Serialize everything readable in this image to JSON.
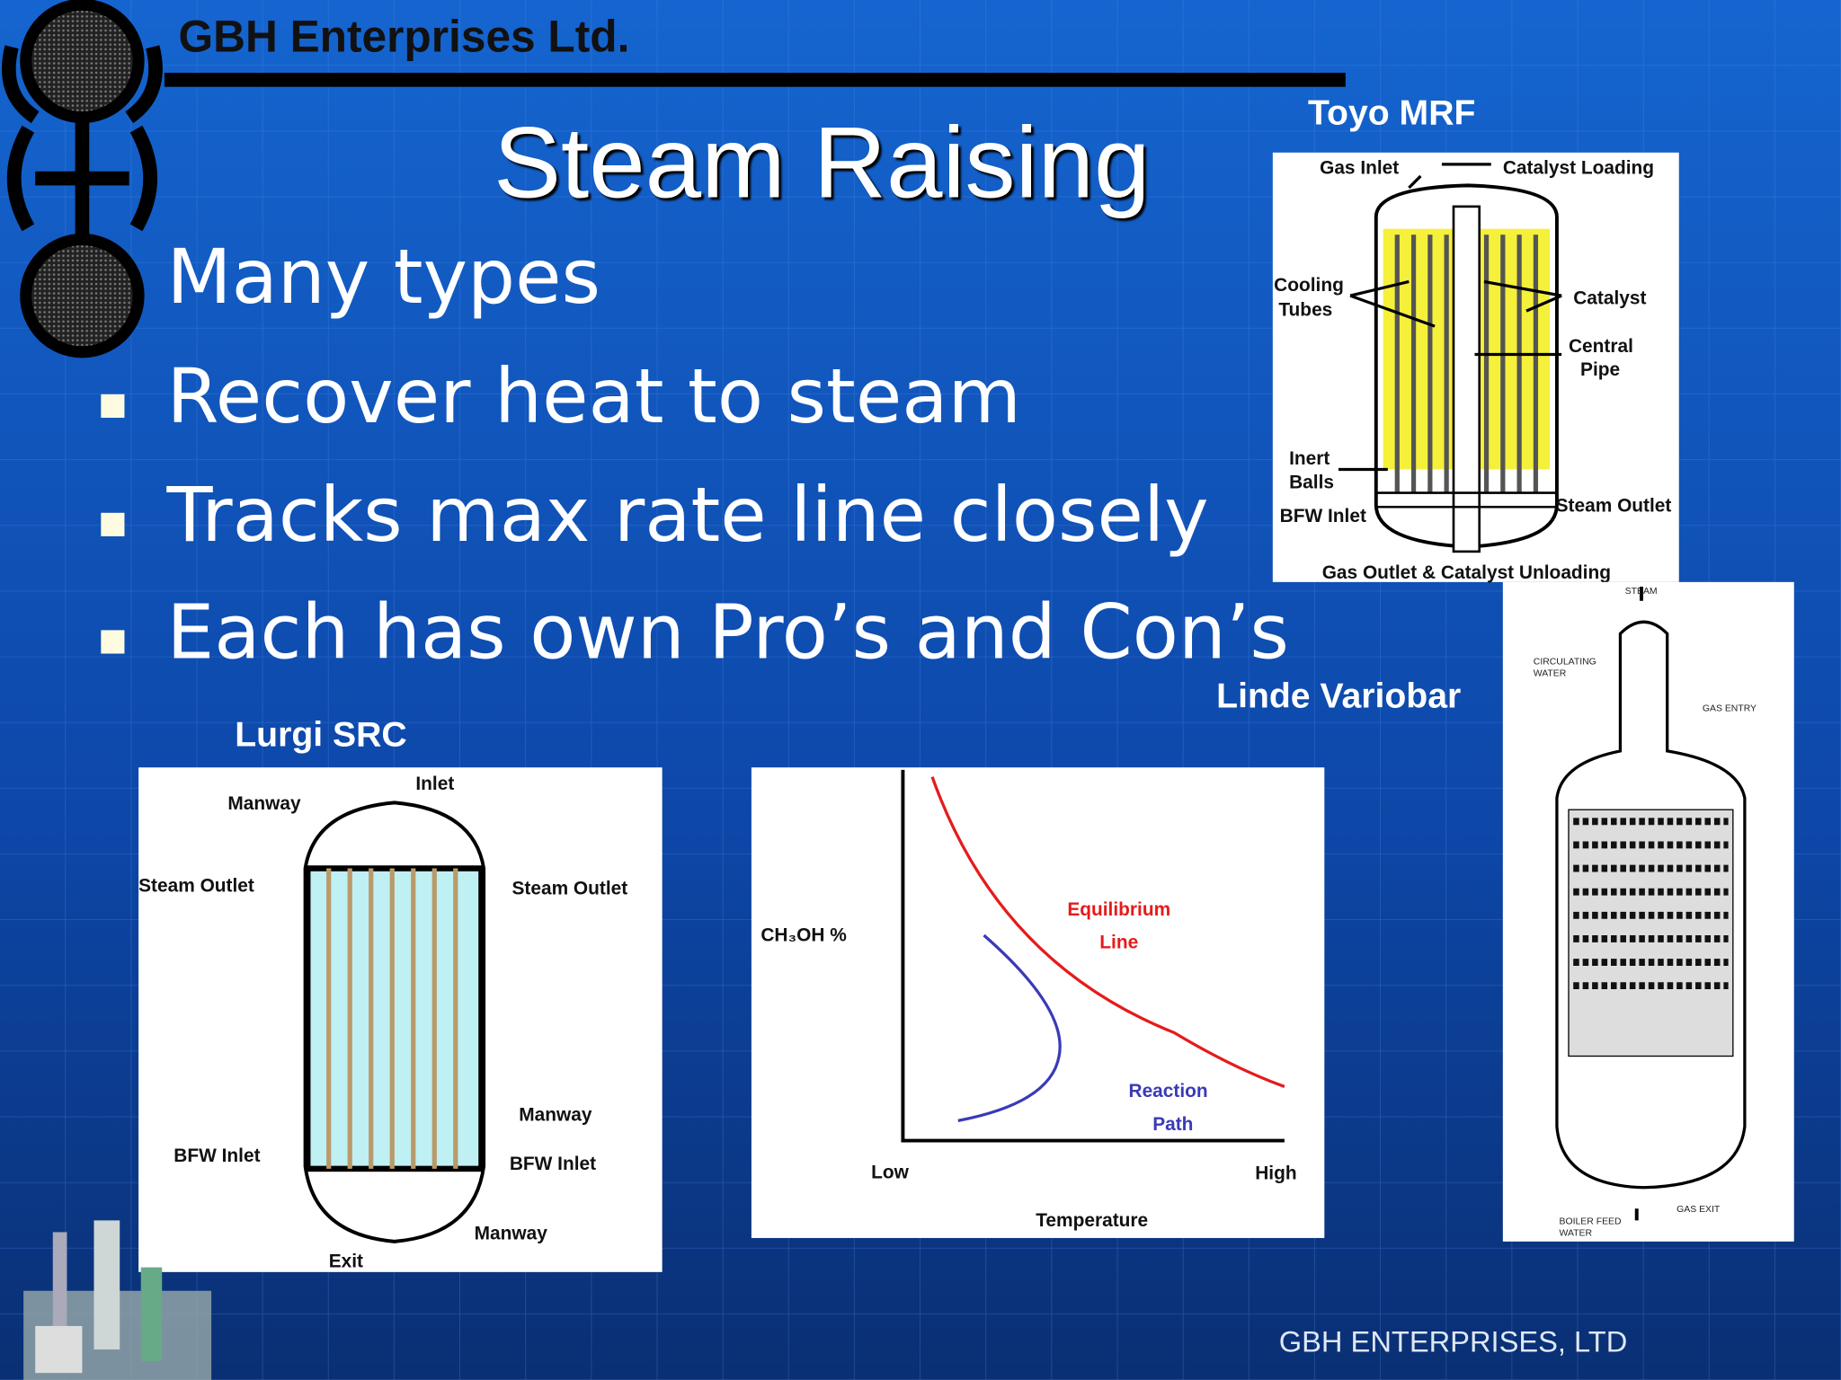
{
  "header": {
    "company": "GBH Enterprises Ltd."
  },
  "title": "Steam Raising",
  "intro": "Many types",
  "bullets": [
    "Recover heat to steam",
    "Tracks max rate line closely",
    "Each has own Pro’s and Con’s"
  ],
  "toyo": {
    "caption": "Toyo MRF",
    "labels": {
      "gas_inlet": "Gas Inlet",
      "catalyst_loading": "Catalyst Loading",
      "cooling_tubes": [
        "Cooling",
        "Tubes"
      ],
      "catalyst": "Catalyst",
      "central_pipe": [
        "Central",
        "Pipe"
      ],
      "inert_balls": [
        "Inert",
        "Balls"
      ],
      "bfw_inlet": "BFW Inlet",
      "steam_outlet": "Steam Outlet",
      "gas_outlet": "Gas Outlet & Catalyst Unloading"
    }
  },
  "linde": {
    "caption": "Linde Variobar",
    "labels": {
      "steam": "STEAM",
      "circulating_water": [
        "CIRCULATING",
        "WATER"
      ],
      "gas_entry": "GAS ENTRY",
      "gas_exit": "GAS EXIT",
      "boiler_feed_water": [
        "BOILER FEED",
        "WATER"
      ]
    }
  },
  "lurgi": {
    "caption": "Lurgi SRC",
    "labels": {
      "inlet": "Inlet",
      "manway_top": "Manway",
      "steam_outlet_left": "Steam Outlet",
      "steam_outlet_right": "Steam Outlet",
      "manway_right": "Manway",
      "bfw_inlet_left": "BFW Inlet",
      "bfw_inlet_right": "BFW Inlet",
      "manway_bottom": "Manway",
      "exit": "Exit"
    }
  },
  "graph": {
    "y_label": "CH₃OH %",
    "x_label": "Temperature",
    "x_low": "Low",
    "x_high": "High",
    "equilibrium": [
      "Equilibrium",
      "Line"
    ],
    "reaction": [
      "Reaction",
      "Path"
    ]
  },
  "footer": "GBH ENTERPRISES, LTD"
}
